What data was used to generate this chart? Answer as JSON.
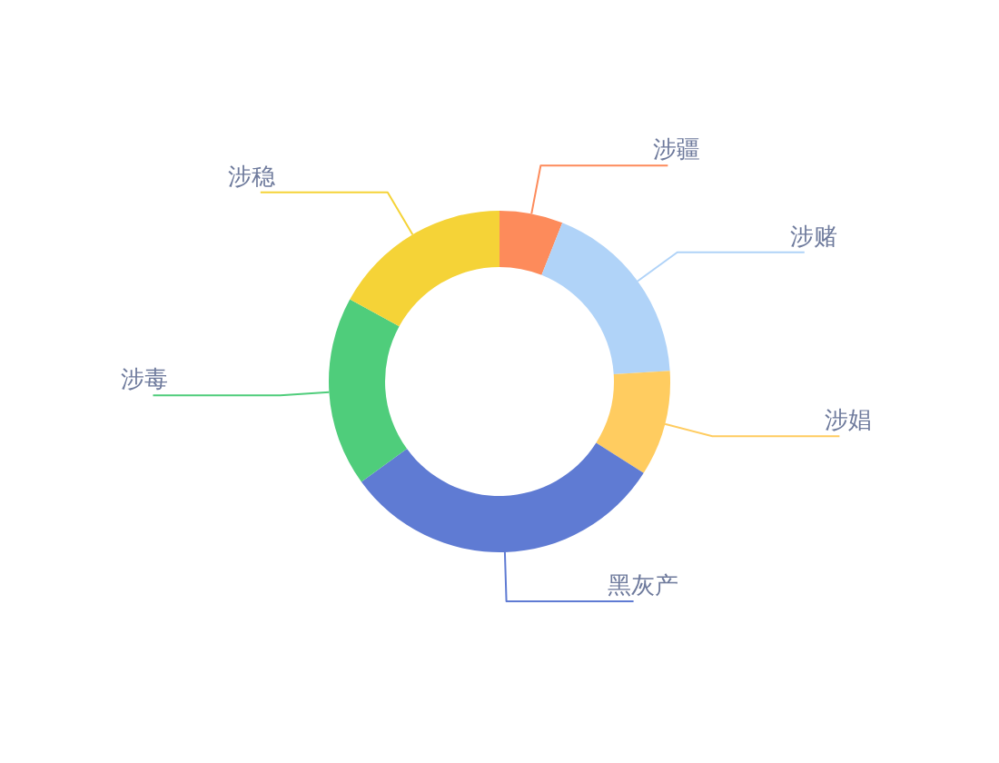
{
  "chart_data": {
    "type": "donut",
    "categories": [
      "涉疆",
      "涉赌",
      "涉娼",
      "黑灰产",
      "涉毒",
      "涉稳"
    ],
    "values": [
      6,
      18,
      10,
      31,
      18,
      17
    ],
    "colors": [
      "#fd8b5b",
      "#b0d3f8",
      "#ffcc60",
      "#5f7bd3",
      "#4fcd7b",
      "#f5d337"
    ]
  }
}
